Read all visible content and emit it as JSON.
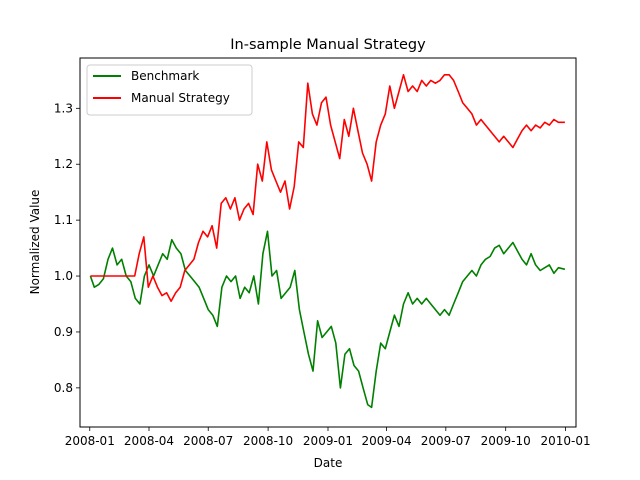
{
  "chart_data": {
    "type": "line",
    "title": "In-sample Manual Strategy",
    "xlabel": "Date",
    "ylabel": "Normalized Value",
    "xlim": [
      "2007-12-17",
      "2010-01-17"
    ],
    "ylim": [
      0.73,
      1.39
    ],
    "x_ticks": [
      "2008-01",
      "2008-04",
      "2008-07",
      "2008-10",
      "2009-01",
      "2009-04",
      "2009-07",
      "2009-10",
      "2010-01"
    ],
    "y_ticks": [
      0.8,
      0.9,
      1.0,
      1.1,
      1.2,
      1.3
    ],
    "grid": false,
    "legend": "upper-left",
    "series": [
      {
        "name": "Benchmark",
        "color": "#008000",
        "points": [
          [
            "2008-01-02",
            1.0
          ],
          [
            "2008-01-08",
            0.98
          ],
          [
            "2008-01-15",
            0.985
          ],
          [
            "2008-01-22",
            0.995
          ],
          [
            "2008-01-29",
            1.03
          ],
          [
            "2008-02-05",
            1.05
          ],
          [
            "2008-02-12",
            1.02
          ],
          [
            "2008-02-19",
            1.03
          ],
          [
            "2008-02-26",
            1.0
          ],
          [
            "2008-03-04",
            0.99
          ],
          [
            "2008-03-11",
            0.96
          ],
          [
            "2008-03-18",
            0.95
          ],
          [
            "2008-03-25",
            1.0
          ],
          [
            "2008-04-01",
            1.02
          ],
          [
            "2008-04-08",
            1.0
          ],
          [
            "2008-04-15",
            1.02
          ],
          [
            "2008-04-22",
            1.04
          ],
          [
            "2008-04-29",
            1.03
          ],
          [
            "2008-05-06",
            1.065
          ],
          [
            "2008-05-13",
            1.05
          ],
          [
            "2008-05-20",
            1.04
          ],
          [
            "2008-05-27",
            1.01
          ],
          [
            "2008-06-03",
            1.0
          ],
          [
            "2008-06-10",
            0.99
          ],
          [
            "2008-06-17",
            0.98
          ],
          [
            "2008-06-24",
            0.96
          ],
          [
            "2008-07-01",
            0.94
          ],
          [
            "2008-07-08",
            0.93
          ],
          [
            "2008-07-15",
            0.91
          ],
          [
            "2008-07-22",
            0.98
          ],
          [
            "2008-07-29",
            1.0
          ],
          [
            "2008-08-05",
            0.99
          ],
          [
            "2008-08-12",
            1.0
          ],
          [
            "2008-08-19",
            0.96
          ],
          [
            "2008-08-26",
            0.98
          ],
          [
            "2008-09-02",
            0.97
          ],
          [
            "2008-09-09",
            1.0
          ],
          [
            "2008-09-16",
            0.95
          ],
          [
            "2008-09-23",
            1.04
          ],
          [
            "2008-09-30",
            1.08
          ],
          [
            "2008-10-07",
            1.0
          ],
          [
            "2008-10-14",
            1.01
          ],
          [
            "2008-10-21",
            0.96
          ],
          [
            "2008-10-28",
            0.97
          ],
          [
            "2008-11-04",
            0.98
          ],
          [
            "2008-11-11",
            1.01
          ],
          [
            "2008-11-18",
            0.94
          ],
          [
            "2008-11-25",
            0.9
          ],
          [
            "2008-12-02",
            0.86
          ],
          [
            "2008-12-09",
            0.83
          ],
          [
            "2008-12-16",
            0.92
          ],
          [
            "2008-12-23",
            0.89
          ],
          [
            "2008-12-30",
            0.9
          ],
          [
            "2009-01-06",
            0.91
          ],
          [
            "2009-01-13",
            0.88
          ],
          [
            "2009-01-20",
            0.8
          ],
          [
            "2009-01-27",
            0.86
          ],
          [
            "2009-02-03",
            0.87
          ],
          [
            "2009-02-10",
            0.84
          ],
          [
            "2009-02-17",
            0.83
          ],
          [
            "2009-02-24",
            0.8
          ],
          [
            "2009-03-03",
            0.77
          ],
          [
            "2009-03-09",
            0.765
          ],
          [
            "2009-03-16",
            0.83
          ],
          [
            "2009-03-23",
            0.88
          ],
          [
            "2009-03-30",
            0.87
          ],
          [
            "2009-04-06",
            0.9
          ],
          [
            "2009-04-13",
            0.93
          ],
          [
            "2009-04-20",
            0.91
          ],
          [
            "2009-04-27",
            0.95
          ],
          [
            "2009-05-04",
            0.97
          ],
          [
            "2009-05-11",
            0.95
          ],
          [
            "2009-05-18",
            0.96
          ],
          [
            "2009-05-25",
            0.95
          ],
          [
            "2009-06-01",
            0.96
          ],
          [
            "2009-06-08",
            0.95
          ],
          [
            "2009-06-15",
            0.94
          ],
          [
            "2009-06-22",
            0.93
          ],
          [
            "2009-06-29",
            0.94
          ],
          [
            "2009-07-06",
            0.93
          ],
          [
            "2009-07-13",
            0.95
          ],
          [
            "2009-07-20",
            0.97
          ],
          [
            "2009-07-27",
            0.99
          ],
          [
            "2009-08-03",
            1.0
          ],
          [
            "2009-08-10",
            1.01
          ],
          [
            "2009-08-17",
            1.0
          ],
          [
            "2009-08-24",
            1.02
          ],
          [
            "2009-08-31",
            1.03
          ],
          [
            "2009-09-07",
            1.035
          ],
          [
            "2009-09-14",
            1.05
          ],
          [
            "2009-09-21",
            1.055
          ],
          [
            "2009-09-28",
            1.04
          ],
          [
            "2009-10-05",
            1.05
          ],
          [
            "2009-10-12",
            1.06
          ],
          [
            "2009-10-19",
            1.045
          ],
          [
            "2009-10-26",
            1.03
          ],
          [
            "2009-11-02",
            1.02
          ],
          [
            "2009-11-09",
            1.04
          ],
          [
            "2009-11-16",
            1.02
          ],
          [
            "2009-11-23",
            1.01
          ],
          [
            "2009-11-30",
            1.015
          ],
          [
            "2009-12-07",
            1.02
          ],
          [
            "2009-12-14",
            1.005
          ],
          [
            "2009-12-21",
            1.015
          ],
          [
            "2009-12-31",
            1.012
          ]
        ]
      },
      {
        "name": "Manual Strategy",
        "color": "#ff0000",
        "points": [
          [
            "2008-01-02",
            1.0
          ],
          [
            "2008-03-10",
            1.0
          ],
          [
            "2008-03-17",
            1.04
          ],
          [
            "2008-03-24",
            1.07
          ],
          [
            "2008-03-31",
            0.98
          ],
          [
            "2008-04-07",
            1.0
          ],
          [
            "2008-04-14",
            0.98
          ],
          [
            "2008-04-21",
            0.965
          ],
          [
            "2008-04-28",
            0.97
          ],
          [
            "2008-05-05",
            0.955
          ],
          [
            "2008-05-12",
            0.97
          ],
          [
            "2008-05-19",
            0.98
          ],
          [
            "2008-05-26",
            1.01
          ],
          [
            "2008-06-02",
            1.02
          ],
          [
            "2008-06-09",
            1.03
          ],
          [
            "2008-06-16",
            1.06
          ],
          [
            "2008-06-23",
            1.08
          ],
          [
            "2008-06-30",
            1.07
          ],
          [
            "2008-07-07",
            1.09
          ],
          [
            "2008-07-14",
            1.05
          ],
          [
            "2008-07-21",
            1.13
          ],
          [
            "2008-07-28",
            1.14
          ],
          [
            "2008-08-04",
            1.12
          ],
          [
            "2008-08-11",
            1.14
          ],
          [
            "2008-08-18",
            1.1
          ],
          [
            "2008-08-25",
            1.12
          ],
          [
            "2008-09-01",
            1.13
          ],
          [
            "2008-09-08",
            1.11
          ],
          [
            "2008-09-15",
            1.2
          ],
          [
            "2008-09-22",
            1.17
          ],
          [
            "2008-09-29",
            1.24
          ],
          [
            "2008-10-06",
            1.19
          ],
          [
            "2008-10-13",
            1.17
          ],
          [
            "2008-10-20",
            1.15
          ],
          [
            "2008-10-27",
            1.17
          ],
          [
            "2008-11-03",
            1.12
          ],
          [
            "2008-11-10",
            1.16
          ],
          [
            "2008-11-17",
            1.24
          ],
          [
            "2008-11-24",
            1.23
          ],
          [
            "2008-12-01",
            1.345
          ],
          [
            "2008-12-08",
            1.29
          ],
          [
            "2008-12-15",
            1.27
          ],
          [
            "2008-12-22",
            1.31
          ],
          [
            "2008-12-29",
            1.32
          ],
          [
            "2009-01-05",
            1.27
          ],
          [
            "2009-01-12",
            1.24
          ],
          [
            "2009-01-19",
            1.21
          ],
          [
            "2009-01-26",
            1.28
          ],
          [
            "2009-02-02",
            1.25
          ],
          [
            "2009-02-09",
            1.3
          ],
          [
            "2009-02-16",
            1.26
          ],
          [
            "2009-02-23",
            1.22
          ],
          [
            "2009-03-02",
            1.2
          ],
          [
            "2009-03-09",
            1.17
          ],
          [
            "2009-03-16",
            1.24
          ],
          [
            "2009-03-23",
            1.27
          ],
          [
            "2009-03-30",
            1.29
          ],
          [
            "2009-04-06",
            1.34
          ],
          [
            "2009-04-13",
            1.3
          ],
          [
            "2009-04-20",
            1.33
          ],
          [
            "2009-04-27",
            1.36
          ],
          [
            "2009-05-04",
            1.33
          ],
          [
            "2009-05-11",
            1.34
          ],
          [
            "2009-05-18",
            1.33
          ],
          [
            "2009-05-25",
            1.35
          ],
          [
            "2009-06-01",
            1.34
          ],
          [
            "2009-06-08",
            1.35
          ],
          [
            "2009-06-15",
            1.345
          ],
          [
            "2009-06-22",
            1.35
          ],
          [
            "2009-06-29",
            1.36
          ],
          [
            "2009-07-06",
            1.36
          ],
          [
            "2009-07-13",
            1.35
          ],
          [
            "2009-07-20",
            1.33
          ],
          [
            "2009-07-27",
            1.31
          ],
          [
            "2009-08-03",
            1.3
          ],
          [
            "2009-08-10",
            1.29
          ],
          [
            "2009-08-17",
            1.27
          ],
          [
            "2009-08-24",
            1.28
          ],
          [
            "2009-08-31",
            1.27
          ],
          [
            "2009-09-07",
            1.26
          ],
          [
            "2009-09-14",
            1.25
          ],
          [
            "2009-09-21",
            1.24
          ],
          [
            "2009-09-28",
            1.25
          ],
          [
            "2009-10-05",
            1.24
          ],
          [
            "2009-10-12",
            1.23
          ],
          [
            "2009-10-19",
            1.245
          ],
          [
            "2009-10-26",
            1.26
          ],
          [
            "2009-11-02",
            1.27
          ],
          [
            "2009-11-09",
            1.26
          ],
          [
            "2009-11-16",
            1.27
          ],
          [
            "2009-11-23",
            1.265
          ],
          [
            "2009-11-30",
            1.275
          ],
          [
            "2009-12-07",
            1.27
          ],
          [
            "2009-12-14",
            1.28
          ],
          [
            "2009-12-21",
            1.275
          ],
          [
            "2009-12-31",
            1.275
          ]
        ]
      }
    ]
  }
}
